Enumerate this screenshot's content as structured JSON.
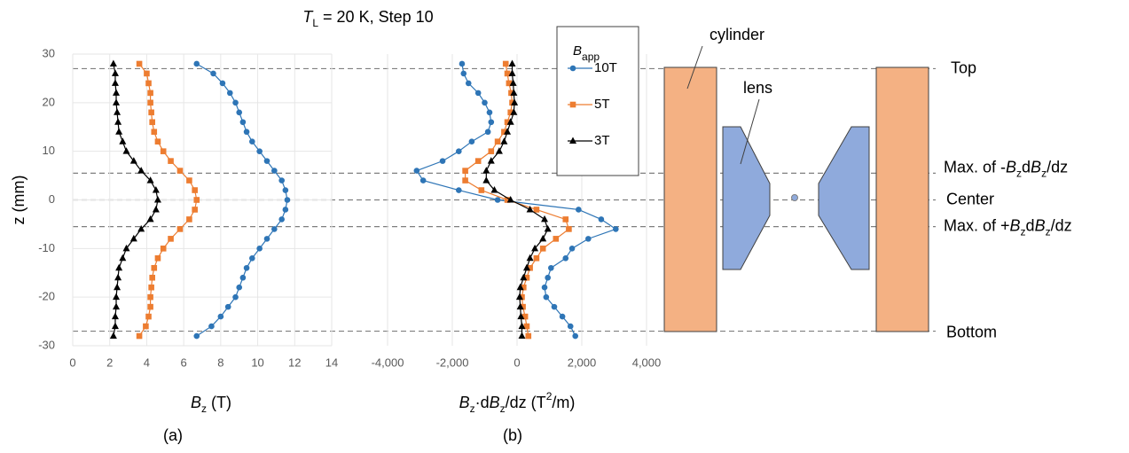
{
  "title": [
    {
      "t": "T",
      "s": "i"
    },
    {
      "t": "L",
      "s": "sub"
    },
    {
      "t": " = 20 K, Step 10",
      "s": ""
    }
  ],
  "chart_data": [
    {
      "type": "line",
      "panel": "(a)",
      "xlabel": [
        {
          "t": "B",
          "s": "i"
        },
        {
          "t": "z",
          "s": "sub"
        },
        {
          "t": " (T)",
          "s": ""
        }
      ],
      "ylabel": [
        {
          "t": "z (mm)",
          "s": ""
        }
      ],
      "xlim": [
        0,
        14
      ],
      "xticks": [
        0,
        2,
        4,
        6,
        8,
        10,
        12,
        14
      ],
      "ylim": [
        -30,
        30
      ],
      "yticks": [
        -30,
        -20,
        -10,
        0,
        10,
        20,
        30
      ],
      "grid": true,
      "z": [
        -28,
        -26,
        -24,
        -22,
        -20,
        -18,
        -16,
        -14,
        -12,
        -10,
        -8,
        -6,
        -4,
        -2,
        0,
        2,
        4,
        6,
        8,
        10,
        12,
        14,
        16,
        18,
        20,
        22,
        24,
        26,
        28
      ],
      "series": [
        {
          "name": "10T",
          "color": "#2e75b6",
          "marker": "circle",
          "values": [
            6.7,
            7.5,
            8.0,
            8.4,
            8.8,
            9.0,
            9.2,
            9.4,
            9.7,
            10.1,
            10.5,
            10.9,
            11.3,
            11.5,
            11.6,
            11.5,
            11.3,
            10.9,
            10.5,
            10.1,
            9.7,
            9.4,
            9.2,
            9.0,
            8.8,
            8.5,
            8.1,
            7.6,
            6.7
          ]
        },
        {
          "name": "5T",
          "color": "#ed7d31",
          "marker": "square",
          "values": [
            3.6,
            3.95,
            4.1,
            4.2,
            4.2,
            4.25,
            4.3,
            4.4,
            4.6,
            4.9,
            5.3,
            5.8,
            6.3,
            6.6,
            6.7,
            6.6,
            6.3,
            5.8,
            5.3,
            4.9,
            4.6,
            4.4,
            4.3,
            4.25,
            4.2,
            4.2,
            4.1,
            4.0,
            3.6
          ]
        },
        {
          "name": "3T",
          "color": "#000000",
          "marker": "triangle",
          "values": [
            2.2,
            2.3,
            2.3,
            2.35,
            2.35,
            2.4,
            2.45,
            2.5,
            2.7,
            2.9,
            3.3,
            3.7,
            4.2,
            4.5,
            4.6,
            4.5,
            4.2,
            3.7,
            3.3,
            2.9,
            2.7,
            2.5,
            2.45,
            2.4,
            2.35,
            2.35,
            2.3,
            2.3,
            2.2
          ]
        }
      ]
    },
    {
      "type": "line",
      "panel": "(b)",
      "xlabel": [
        {
          "t": "B",
          "s": "i"
        },
        {
          "t": "z",
          "s": "sub"
        },
        {
          "t": "·d",
          "s": ""
        },
        {
          "t": "B",
          "s": "i"
        },
        {
          "t": "z",
          "s": "sub"
        },
        {
          "t": "/dz (T",
          "s": ""
        },
        {
          "t": "2",
          "s": "sup"
        },
        {
          "t": "/m)",
          "s": ""
        }
      ],
      "xlim": [
        -4000,
        4000
      ],
      "xticks": [
        {
          "value": -4000,
          "label": "-4,000"
        },
        {
          "value": -2000,
          "label": "-2,000"
        },
        0,
        {
          "value": 2000,
          "label": "2,000"
        },
        {
          "value": 4000,
          "label": "4,000"
        }
      ],
      "ylim": [
        -30,
        30
      ],
      "grid": true,
      "legend_title": [
        {
          "t": "B",
          "s": "i"
        },
        {
          "t": "app",
          "s": "sub"
        }
      ],
      "z": [
        -28,
        -26,
        -24,
        -22,
        -20,
        -18,
        -16,
        -14,
        -12,
        -10,
        -8,
        -6,
        -4,
        -2,
        0,
        2,
        4,
        6,
        8,
        10,
        12,
        14,
        16,
        18,
        20,
        22,
        24,
        26,
        28
      ],
      "series": [
        {
          "name": "10T",
          "color": "#2e75b6",
          "marker": "circle",
          "values": [
            1800,
            1650,
            1400,
            1150,
            900,
            850,
            950,
            1050,
            1500,
            1700,
            2200,
            3050,
            2600,
            1900,
            -600,
            -1800,
            -2900,
            -3100,
            -2300,
            -1800,
            -1400,
            -900,
            -800,
            -850,
            -1000,
            -1200,
            -1500,
            -1650,
            -1700
          ]
        },
        {
          "name": "5T",
          "color": "#ed7d31",
          "marker": "square",
          "values": [
            350,
            300,
            250,
            180,
            150,
            200,
            300,
            400,
            600,
            800,
            1200,
            1600,
            1500,
            600,
            -300,
            -1100,
            -1600,
            -1600,
            -1200,
            -800,
            -600,
            -400,
            -300,
            -200,
            -150,
            -180,
            -250,
            -300,
            -350
          ]
        },
        {
          "name": "3T",
          "color": "#000000",
          "marker": "triangle",
          "values": [
            150,
            150,
            120,
            100,
            80,
            100,
            200,
            300,
            400,
            550,
            800,
            950,
            850,
            400,
            -200,
            -700,
            -950,
            -950,
            -800,
            -550,
            -400,
            -300,
            -200,
            -100,
            -80,
            -100,
            -120,
            -150,
            -150
          ]
        }
      ]
    }
  ],
  "diagram": {
    "cylinder": "cylinder",
    "lens": "lens",
    "reference_lines": [
      {
        "value": 27,
        "label": [
          {
            "t": "Top",
            "s": ""
          }
        ]
      },
      {
        "value": 5.5,
        "label": [
          {
            "t": "Max. of -",
            "s": ""
          },
          {
            "t": "B",
            "s": "i"
          },
          {
            "t": "z",
            "s": "sub"
          },
          {
            "t": "d",
            "s": ""
          },
          {
            "t": "B",
            "s": "i"
          },
          {
            "t": "z",
            "s": "sub"
          },
          {
            "t": "/dz",
            "s": ""
          }
        ]
      },
      {
        "value": 0,
        "label": [
          {
            "t": "Center",
            "s": ""
          }
        ]
      },
      {
        "value": -5.5,
        "label": [
          {
            "t": "Max. of +",
            "s": ""
          },
          {
            "t": "B",
            "s": "i"
          },
          {
            "t": "z",
            "s": "sub"
          },
          {
            "t": "d",
            "s": ""
          },
          {
            "t": "B",
            "s": "i"
          },
          {
            "t": "z",
            "s": "sub"
          },
          {
            "t": "/dz",
            "s": ""
          }
        ]
      },
      {
        "value": -27,
        "label": [
          {
            "t": "Bottom",
            "s": ""
          }
        ]
      }
    ]
  }
}
